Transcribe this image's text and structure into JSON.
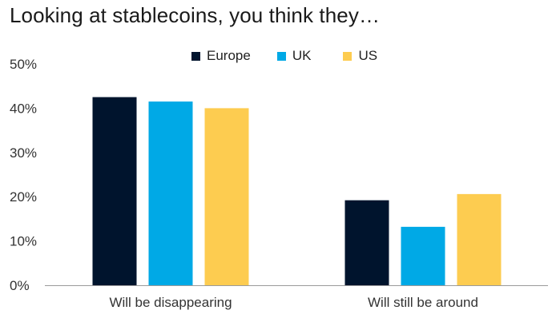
{
  "chart_data": {
    "type": "bar",
    "title": "Looking at stablecoins, you think they…",
    "xlabel": "",
    "ylabel": "",
    "categories": [
      "Will be disappearing",
      "Will still be around"
    ],
    "series": [
      {
        "name": "Europe",
        "color": "#00142d",
        "values": [
          42.5,
          19.2
        ]
      },
      {
        "name": "UK",
        "color": "#00a9e6",
        "values": [
          41.5,
          13.2
        ]
      },
      {
        "name": "US",
        "color": "#fdcc50",
        "values": [
          40.0,
          20.6
        ]
      }
    ],
    "ylim": [
      0,
      50
    ],
    "yticks": [
      0,
      10,
      20,
      30,
      40,
      50
    ],
    "ytick_labels": [
      "0%",
      "10%",
      "20%",
      "30%",
      "40%",
      "50%"
    ],
    "grid": false,
    "legend_position": "top-center"
  }
}
